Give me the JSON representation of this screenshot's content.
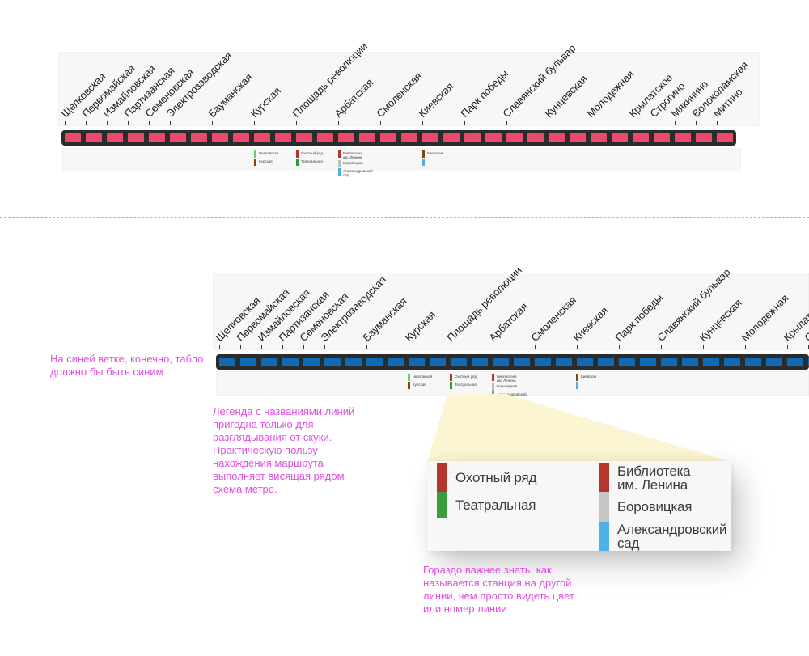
{
  "annotations": {
    "color": "#e14fe1",
    "blue_note": "На синей ветке, конечно, табло\nдолжно бы быть синим.",
    "legend_note": "Легенда с названиями линий\nпригодна только для\nразглядывания от скуки.\nПрактическую пользу\nнахождения маршрута\nвыполняет висящая рядом\nсхема метро.",
    "zoom_note": "Гораздо важнее знать, как\nназывается станция на другой\nлинии, чем просто видеть цвет\nили номер линии"
  },
  "board": {
    "track_color": "#2b2b2b",
    "pink_segment_color": "#ea4a6e",
    "blue_segment_color": "#1269b4",
    "segment_count": 32,
    "stations": [
      {
        "name": "Щелковская",
        "slot": 0
      },
      {
        "name": "Первомайская",
        "slot": 1
      },
      {
        "name": "Измайловская",
        "slot": 2
      },
      {
        "name": "Партизанская",
        "slot": 3
      },
      {
        "name": "Семеновская",
        "slot": 4
      },
      {
        "name": "Электрозаводская",
        "slot": 5
      },
      {
        "name": "Бауманская",
        "slot": 7
      },
      {
        "name": "Курская",
        "slot": 9
      },
      {
        "name": "Площадь революции",
        "slot": 11
      },
      {
        "name": "Арбатская",
        "slot": 13
      },
      {
        "name": "Смоленская",
        "slot": 15
      },
      {
        "name": "Киевская",
        "slot": 17
      },
      {
        "name": "Парк победы",
        "slot": 19
      },
      {
        "name": "Славянский бульвар",
        "slot": 21
      },
      {
        "name": "Кунцевская",
        "slot": 23
      },
      {
        "name": "Молодежная",
        "slot": 25
      },
      {
        "name": "Крылатское",
        "slot": 27
      },
      {
        "name": "Строгино",
        "slot": 28
      },
      {
        "name": "Мякинино",
        "slot": 29
      },
      {
        "name": "Волоколамская",
        "slot": 30
      },
      {
        "name": "Митино",
        "slot": 31
      }
    ],
    "transfers": [
      {
        "slot": 9,
        "items": [
          {
            "color": "#67d45f",
            "label": "Чкаловская"
          },
          {
            "color": "#7a4a12",
            "label": "Курская"
          }
        ]
      },
      {
        "slot": 11,
        "items": [
          {
            "color": "#b5352c",
            "label": "Охотный ряд"
          },
          {
            "color": "#37953c",
            "label": "Театральная"
          }
        ]
      },
      {
        "slot": 13,
        "items": [
          {
            "color": "#b5352c",
            "label": "Библиотека\nим. Ленина"
          },
          {
            "color": "#bdbdbd",
            "label": "Боровицкая"
          },
          {
            "color": "#4aafe9",
            "label": "Александровский\nсад"
          }
        ]
      },
      {
        "slot": 17,
        "items": [
          {
            "color": "#7a4a12",
            "label": "Киевская"
          },
          {
            "color": "#4aafe9",
            "label": ""
          }
        ]
      }
    ]
  },
  "zoom_legend": {
    "bg": "#f7f7f5",
    "beam_color": "#fbf5d3",
    "columns": [
      {
        "items": [
          {
            "color": "#b5362c",
            "label": "Охотный ряд",
            "h": 35
          },
          {
            "color": "#3d9c3b",
            "label": "Театральная",
            "h": 33
          }
        ]
      },
      {
        "items": [
          {
            "color": "#b5362c",
            "label": "Библиотека\nим. Ленина",
            "h": 35
          },
          {
            "color": "#c6c6c6",
            "label": "Боровицкая",
            "h": 37
          },
          {
            "color": "#4cb1e8",
            "label": "Александровский\nсад",
            "h": 36
          }
        ]
      }
    ]
  },
  "divider_color": "#b5b5b5"
}
